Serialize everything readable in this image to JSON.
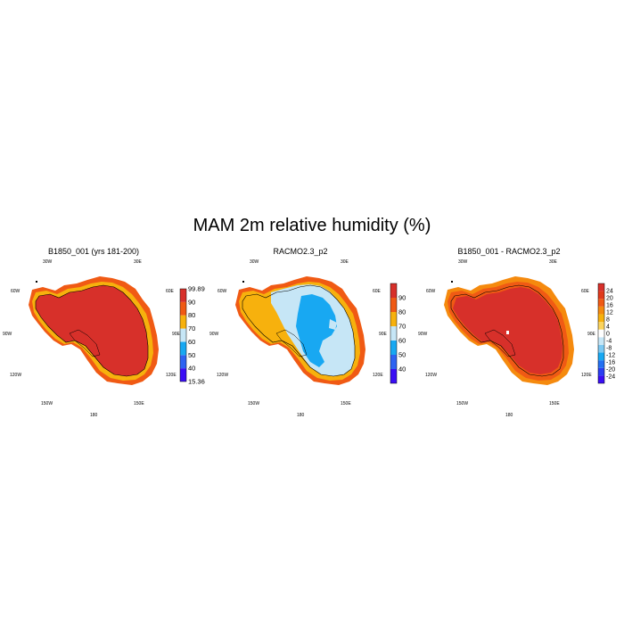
{
  "title": "MAM 2m relative humidity (%)",
  "lon_labels": [
    "30W",
    "30E",
    "60W",
    "60E",
    "90W",
    "90E",
    "120W",
    "120E",
    "150W",
    "150E",
    "180"
  ],
  "panels": [
    {
      "title": "B1850_001 (yrs 181-200)",
      "colorbar": {
        "colors": [
          "#3a0ef5",
          "#2e63f2",
          "#18a8f2",
          "#c6e6f6",
          "#f7b10d",
          "#f05a14",
          "#d7302a"
        ],
        "labels": [
          "99.89",
          "90",
          "80",
          "70",
          "60",
          "50",
          "40",
          "15.36"
        ]
      }
    },
    {
      "title": "RACMO2.3_p2",
      "colorbar": {
        "colors": [
          "#3a0ef5",
          "#2e63f2",
          "#18a8f2",
          "#c6e6f6",
          "#f7b10d",
          "#f05a14",
          "#d7302a"
        ],
        "labels": [
          "90",
          "80",
          "70",
          "60",
          "50",
          "40"
        ]
      }
    },
    {
      "title": "B1850_001 - RACMO2.3_p2",
      "colorbar": {
        "colors": [
          "#3a0ef5",
          "#2a3ef2",
          "#2470f2",
          "#18a8f2",
          "#7cc8f2",
          "#c6e6f6",
          "#ffffff",
          "#fbd35c",
          "#f7b10d",
          "#f58a0e",
          "#f05a14",
          "#e03a1c",
          "#d7302a"
        ],
        "labels": [
          "24",
          "20",
          "16",
          "12",
          "8",
          "4",
          "0",
          "-4",
          "-8",
          "-12",
          "-16",
          "-20",
          "-24"
        ]
      }
    }
  ]
}
